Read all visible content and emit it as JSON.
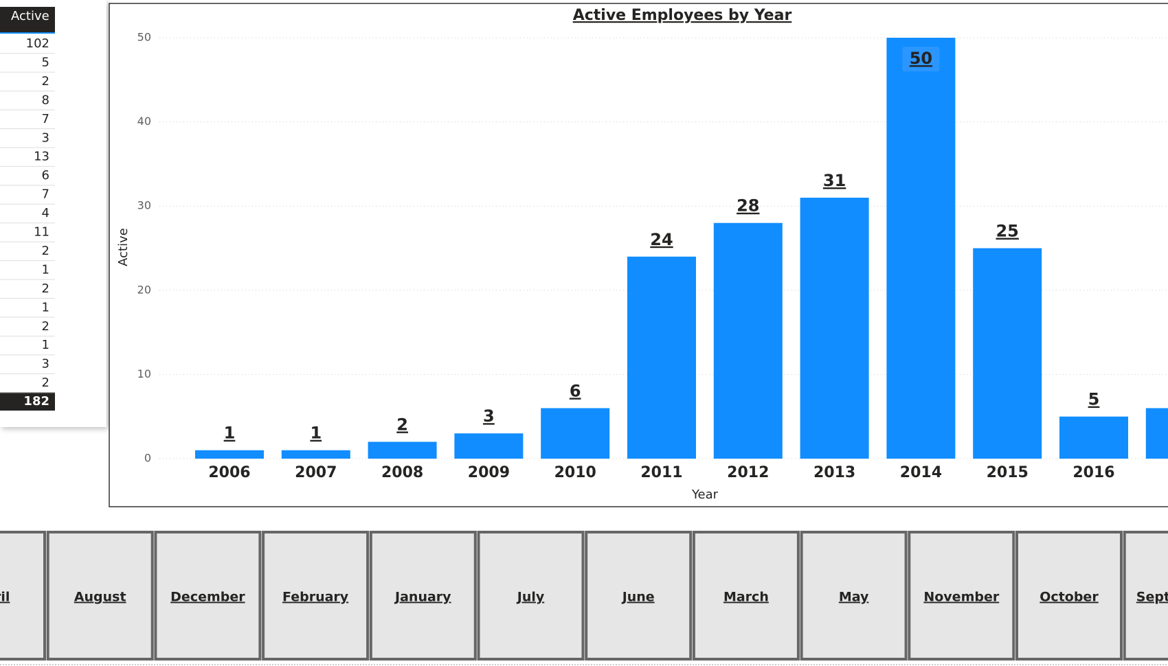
{
  "chart_data": {
    "type": "bar",
    "title": "Active Employees by Year",
    "x_label": "Year",
    "y_label": "Active",
    "categories": [
      "2006",
      "2007",
      "2008",
      "2009",
      "2010",
      "2011",
      "2012",
      "2013",
      "2014",
      "2015",
      "2016",
      null
    ],
    "values": [
      1,
      1,
      2,
      3,
      6,
      24,
      28,
      31,
      50,
      25,
      5,
      6
    ],
    "color": "#118dff",
    "ylim": [
      0,
      50
    ],
    "yticks": [
      0,
      10,
      20,
      30,
      40,
      50
    ],
    "grid": true
  },
  "table": {
    "header": "Active",
    "rows": [
      "102",
      "5",
      "2",
      "8",
      "7",
      "3",
      "13",
      "6",
      "7",
      "4",
      "11",
      "2",
      "1",
      "2",
      "1",
      "2",
      "1",
      "3",
      "2"
    ],
    "total": "182"
  },
  "slicer": {
    "items": [
      "April",
      "August",
      "December",
      "February",
      "January",
      "July",
      "June",
      "March",
      "May",
      "November",
      "October",
      "September"
    ]
  }
}
